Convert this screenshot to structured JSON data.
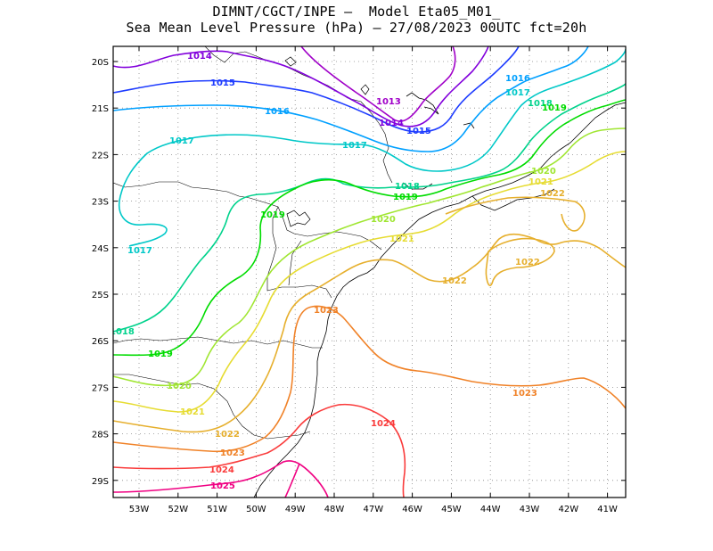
{
  "title": {
    "line1": "DIMNT/CGCT/INPE –  Model Eta05_M01_",
    "line2": "Sea Mean Level Pressure (hPa) – 27/08/2023 00UTC fct=20h"
  },
  "axes": {
    "x_ticks": [
      "53W",
      "52W",
      "51W",
      "50W",
      "49W",
      "48W",
      "47W",
      "46W",
      "45W",
      "44W",
      "43W",
      "42W",
      "41W"
    ],
    "y_ticks": [
      "20S",
      "21S",
      "22S",
      "23S",
      "24S",
      "25S",
      "26S",
      "27S",
      "28S",
      "29S"
    ]
  },
  "isobars": [
    {
      "level": "1013",
      "color": "#a000c8",
      "label": "1013"
    },
    {
      "level": "1014",
      "color": "#8200dc",
      "label": "1014"
    },
    {
      "level": "1015",
      "color": "#1e3cff",
      "label": "1015"
    },
    {
      "level": "1016",
      "color": "#00a0ff",
      "label": "1016"
    },
    {
      "level": "1017",
      "color": "#00c8c8",
      "label": "1017"
    },
    {
      "level": "1018",
      "color": "#00d28c",
      "label": "1018"
    },
    {
      "level": "1019",
      "color": "#00dc00",
      "label": "1019"
    },
    {
      "level": "1020",
      "color": "#a0e632",
      "label": "1020"
    },
    {
      "level": "1021",
      "color": "#e6dc32",
      "label": "1021"
    },
    {
      "level": "1022",
      "color": "#e6af2d",
      "label": "1022"
    },
    {
      "level": "1023",
      "color": "#f08228",
      "label": "1023"
    },
    {
      "level": "1024",
      "color": "#fa3c3c",
      "label": "1024"
    },
    {
      "level": "1025",
      "color": "#f00082",
      "label": "1025"
    }
  ]
}
